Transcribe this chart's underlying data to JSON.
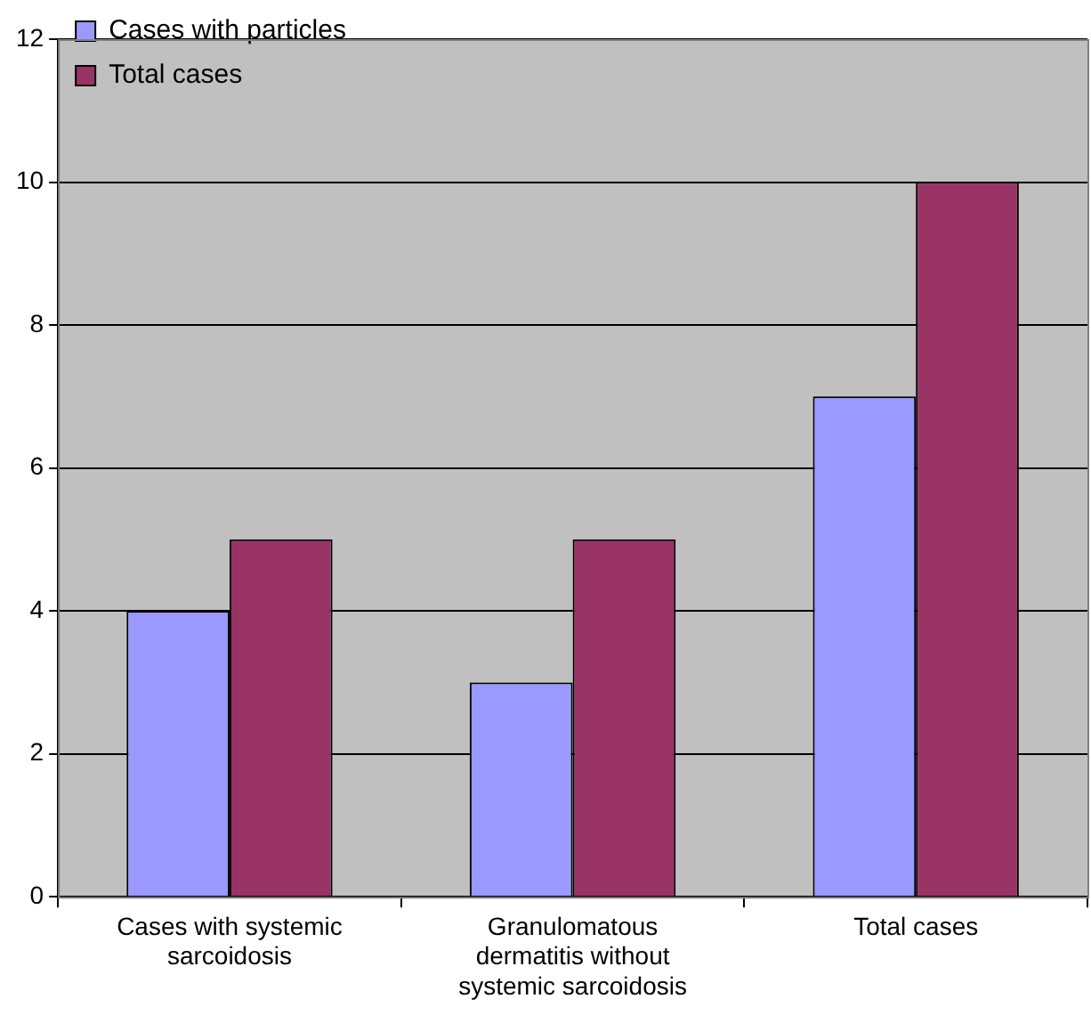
{
  "chart_data": {
    "type": "bar",
    "categories": [
      "Cases with systemic sarcoidosis",
      "Granulomatous dermatitis without systemic sarcoidosis",
      "Total cases"
    ],
    "series": [
      {
        "name": "Cases with particles",
        "color": "#9999ff",
        "values": [
          4,
          3,
          7
        ]
      },
      {
        "name": "Total cases",
        "color": "#993366",
        "values": [
          5,
          5,
          10
        ]
      }
    ],
    "ylim": [
      0,
      12
    ],
    "yticks": [
      0,
      2,
      4,
      6,
      8,
      10,
      12
    ],
    "grid": "y",
    "legend": "top"
  }
}
